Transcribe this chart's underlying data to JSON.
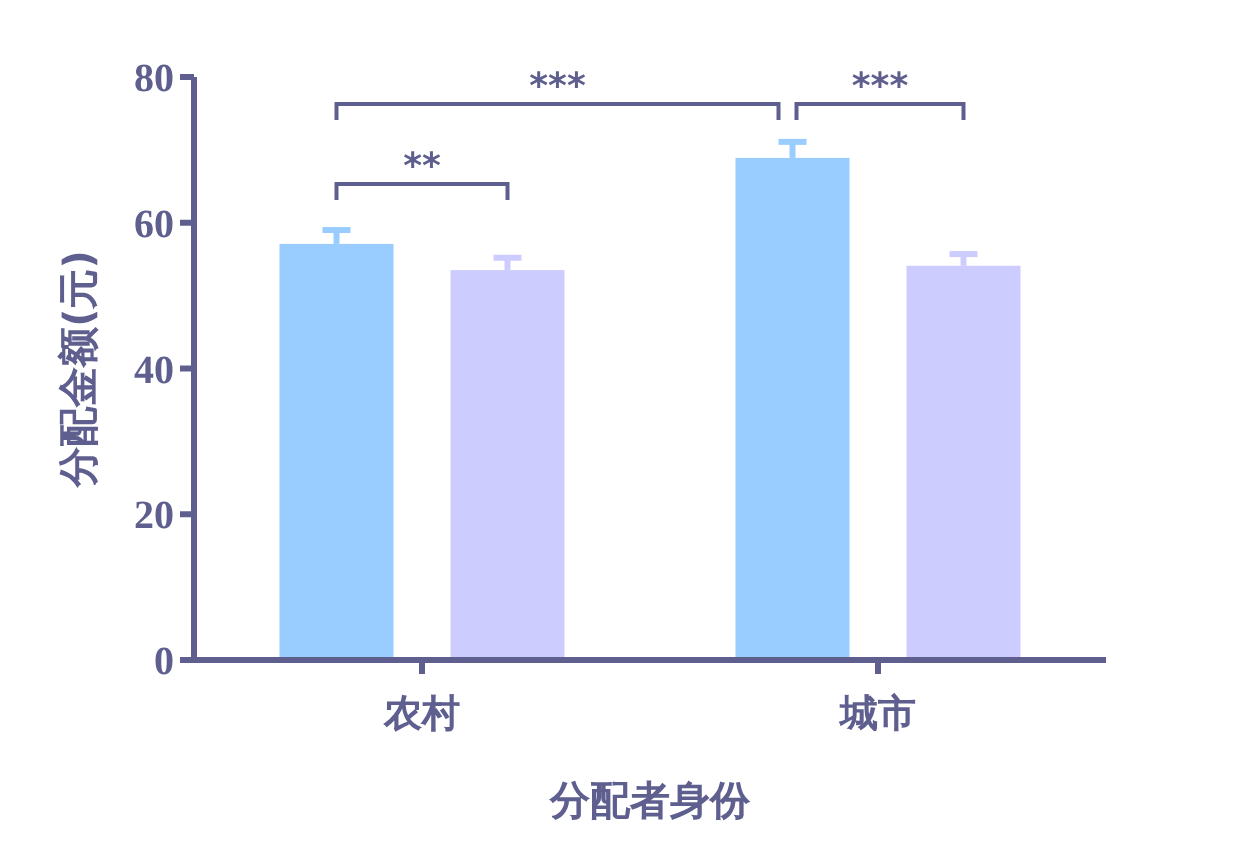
{
  "chart_data": {
    "type": "bar",
    "xlabel": "分配者身份",
    "ylabel": "分配金额(元)",
    "categories": [
      "农村",
      "城市"
    ],
    "series": [
      {
        "color": "#99ccff",
        "values": [
          57.1,
          68.9
        ],
        "errors": [
          [
            57.1,
            59.0
          ],
          [
            68.9,
            71.1
          ]
        ]
      },
      {
        "color": "#ccccff",
        "values": [
          53.5,
          54.1
        ],
        "errors": [
          [
            53.5,
            55.2
          ],
          [
            54.1,
            55.7
          ]
        ]
      }
    ],
    "ylim": [
      0,
      80
    ],
    "yticks": [
      0,
      20,
      40,
      60,
      80
    ],
    "grid": false,
    "annotations": [
      "**",
      "***",
      "***"
    ]
  }
}
